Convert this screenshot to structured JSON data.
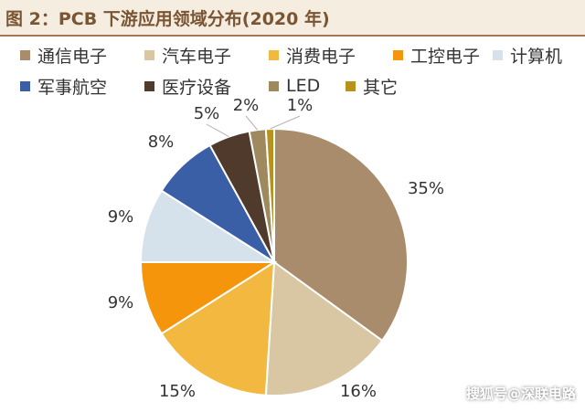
{
  "title": "图 2：PCB 下游应用领域分布(2020 年)",
  "watermark": "搜狐号@深联电路",
  "colors": {
    "title_text": "#7a5533",
    "title_bg": "#f5ede0",
    "title_rule": "#a07a52"
  },
  "chart_data": {
    "type": "pie",
    "legend_placement": "top",
    "slices": [
      {
        "name": "通信电子",
        "value": 35,
        "label": "35%",
        "color": "#a98c6c"
      },
      {
        "name": "汽车电子",
        "value": 16,
        "label": "16%",
        "color": "#d9c6a3"
      },
      {
        "name": "消费电子",
        "value": 15,
        "label": "15%",
        "color": "#f3b83f"
      },
      {
        "name": "工控电子",
        "value": 9,
        "label": "9%",
        "color": "#f4950c"
      },
      {
        "name": "计算机",
        "value": 9,
        "label": "9%",
        "color": "#d5e1eb"
      },
      {
        "name": "军事航空",
        "value": 8,
        "label": "8%",
        "color": "#3a5fa7"
      },
      {
        "name": "医疗设备",
        "value": 5,
        "label": "5%",
        "color": "#4f3a2b"
      },
      {
        "name": "LED",
        "value": 2,
        "label": "2%",
        "color": "#9f8a5f"
      },
      {
        "name": "其它",
        "value": 1,
        "label": "1%",
        "color": "#b8921a"
      }
    ]
  }
}
